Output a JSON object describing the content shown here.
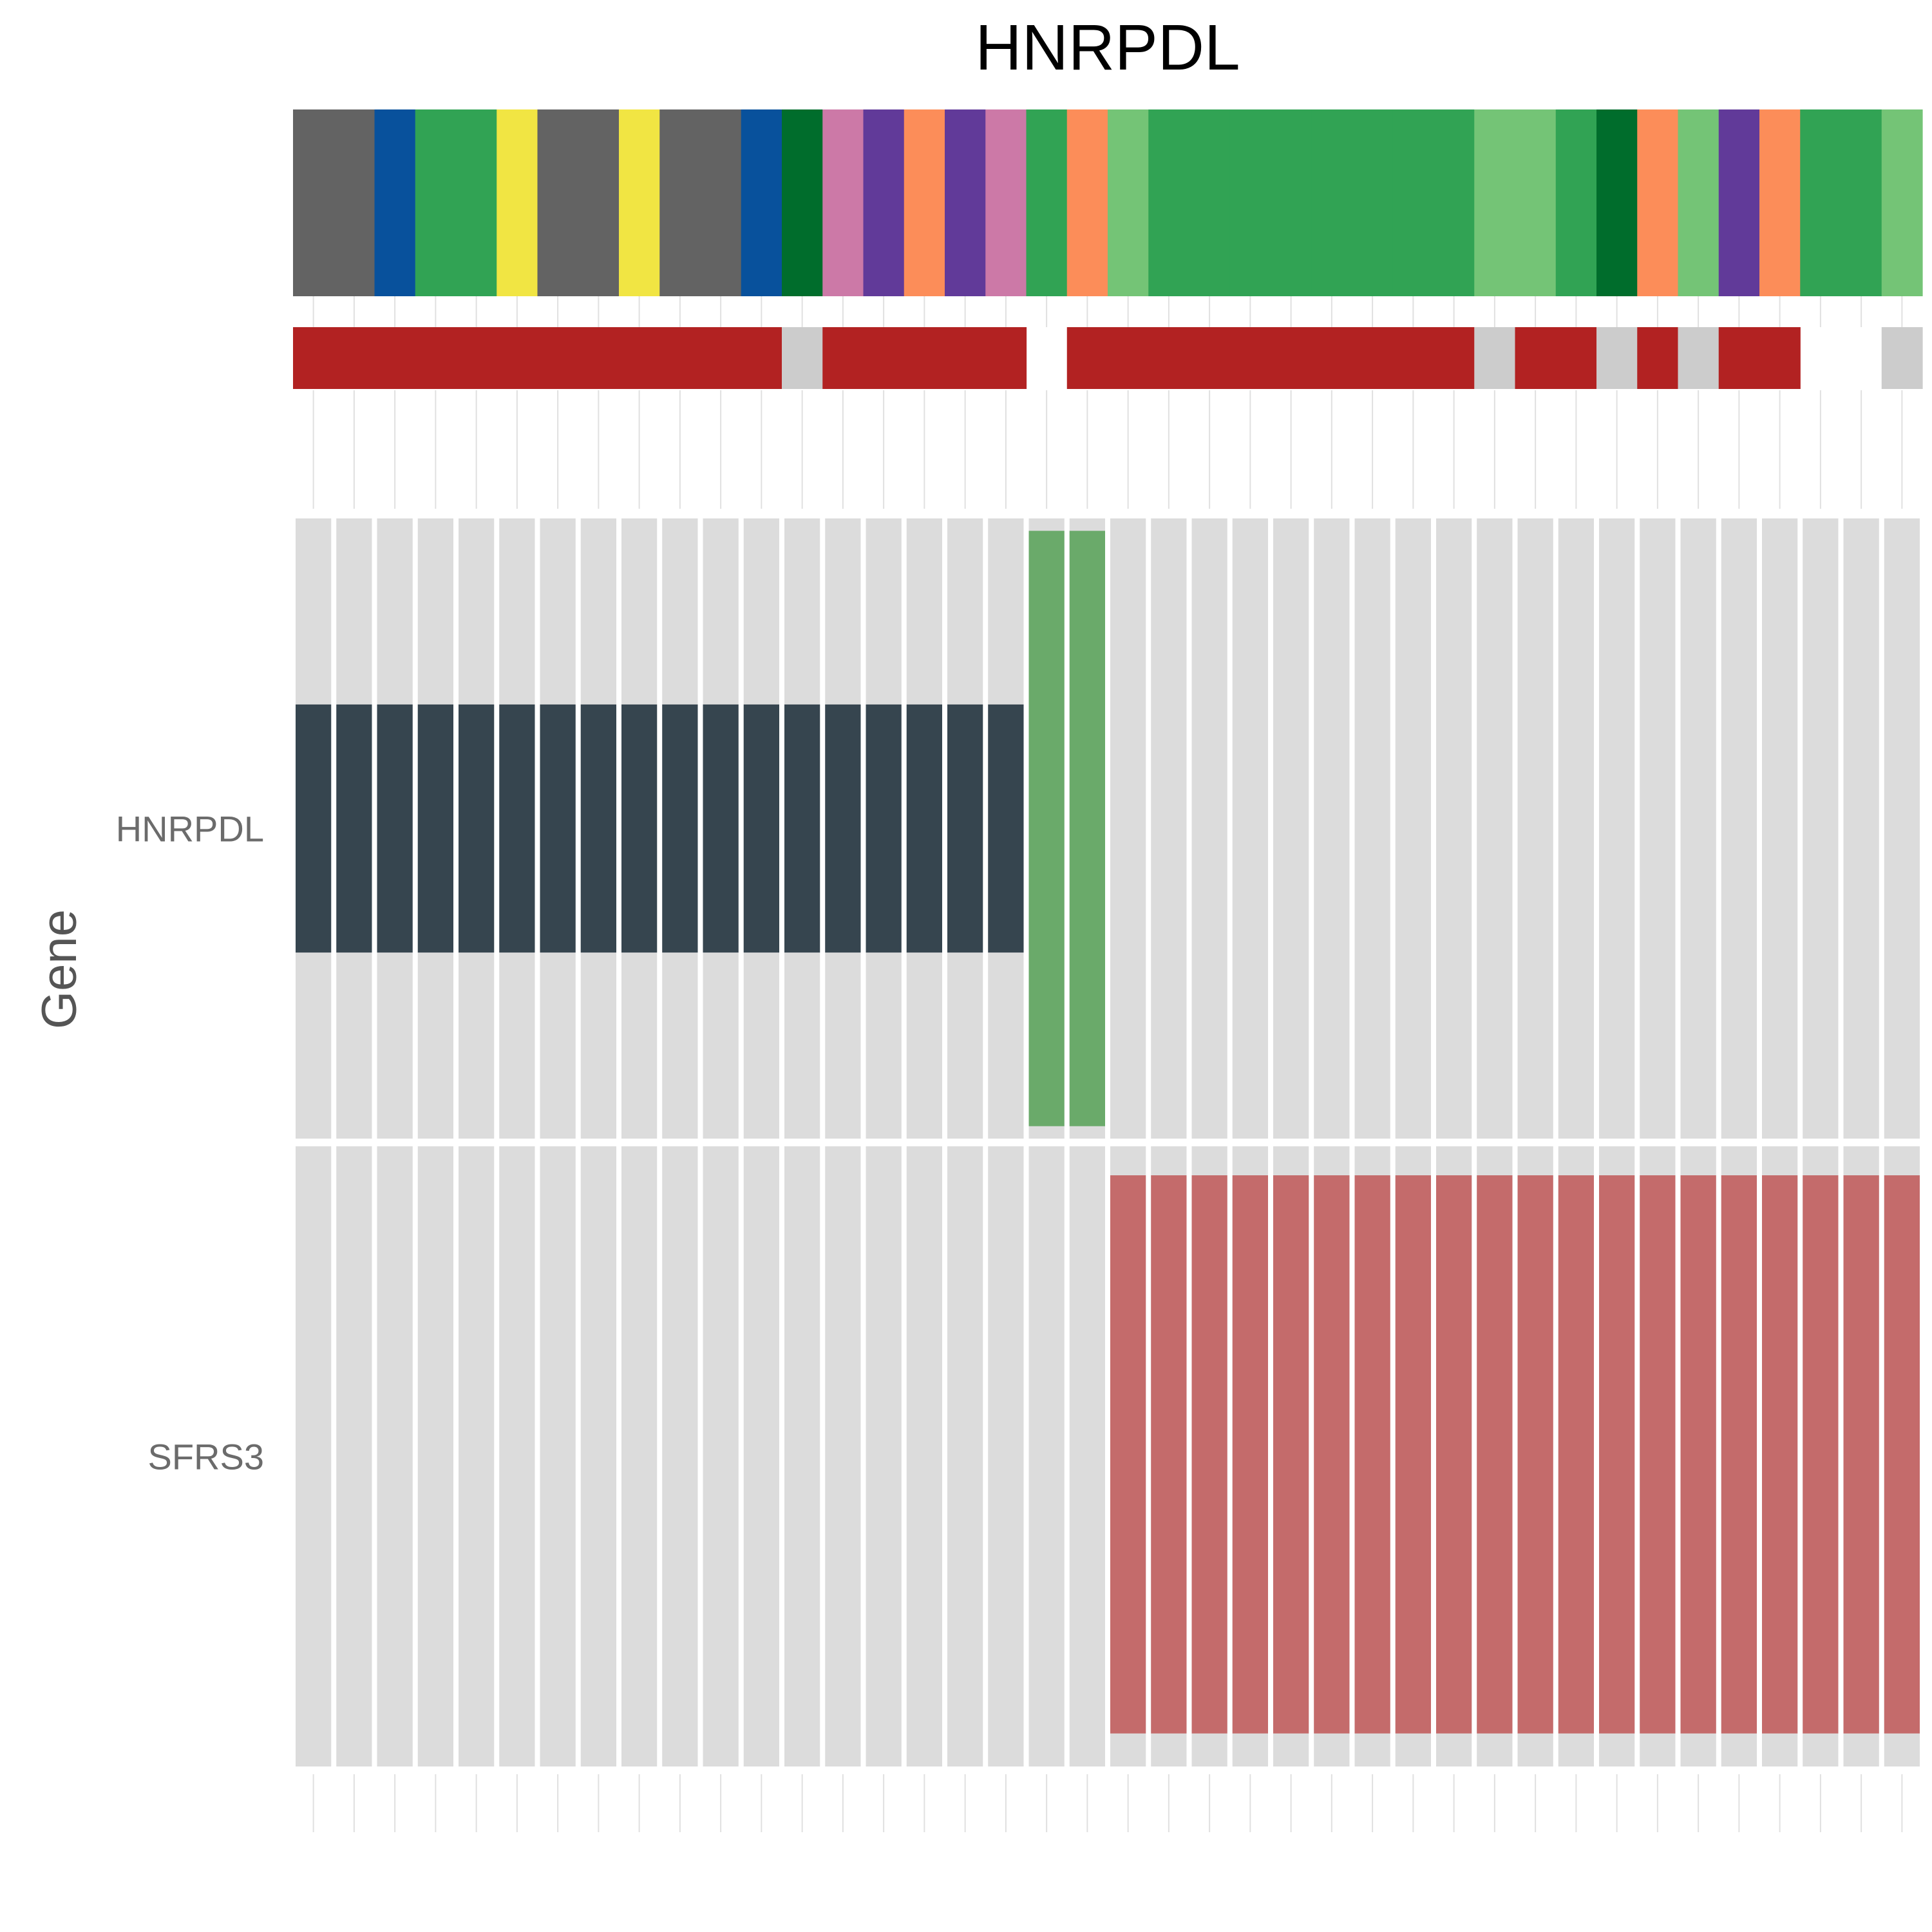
{
  "chart_data": {
    "type": "heatmap",
    "title": "HNRPDL",
    "ylabel": "Gene",
    "samples_count": 40,
    "genes": [
      {
        "name": "HNRPDL",
        "background_color": "#dcdcdc",
        "alterations": [
          {
            "color": "#36454f",
            "value_coverage": 0.4,
            "samples": [
              0,
              1,
              2,
              3,
              4,
              5,
              6,
              7,
              8,
              9,
              10,
              11,
              12,
              13,
              14,
              15,
              16,
              17
            ]
          },
          {
            "color": "#6aaa6a",
            "value_coverage": 0.96,
            "samples": [
              18,
              19
            ]
          }
        ]
      },
      {
        "name": "SFRS3",
        "background_color": "#dcdcdc",
        "alterations": [
          {
            "color": "#c46b6b",
            "value_coverage": 0.9,
            "samples": [
              20,
              21,
              22,
              23,
              24,
              25,
              26,
              27,
              28,
              29,
              30,
              31,
              32,
              33,
              34,
              35,
              36,
              37,
              38,
              39
            ]
          }
        ]
      }
    ],
    "annotation_tracks": [
      {
        "name": "",
        "colors": [
          "#636363",
          "#636363",
          "#08519c",
          "#31a354",
          "#31a354",
          "#f1e543",
          "#636363",
          "#636363",
          "#f1e543",
          "#636363",
          "#636363",
          "#08519c",
          "#006d2c",
          "#cc79a7",
          "#613a99",
          "#fc8d59",
          "#613a99",
          "#cc79a7",
          "#31a354",
          "#fc8d59",
          "#74c476",
          "#31a354",
          "#31a354",
          "#31a354",
          "#31a354",
          "#31a354",
          "#31a354",
          "#31a354",
          "#31a354",
          "#74c476",
          "#74c476",
          "#31a354",
          "#006d2c",
          "#fc8d59",
          "#74c476",
          "#613a99",
          "#fc8d59",
          "#31a354",
          "#31a354",
          "#74c476"
        ]
      },
      {
        "name": "",
        "colors": [
          "#b22222",
          "#b22222",
          "#b22222",
          "#b22222",
          "#b22222",
          "#b22222",
          "#b22222",
          "#b22222",
          "#b22222",
          "#b22222",
          "#b22222",
          "#b22222",
          "#cccccc",
          "#b22222",
          "#b22222",
          "#b22222",
          "#b22222",
          "#b22222",
          null,
          "#b22222",
          "#b22222",
          "#b22222",
          "#b22222",
          "#b22222",
          "#b22222",
          "#b22222",
          "#b22222",
          "#b22222",
          "#b22222",
          "#cccccc",
          "#b22222",
          "#b22222",
          "#cccccc",
          "#b22222",
          "#cccccc",
          "#b22222",
          "#b22222",
          null,
          null,
          "#cccccc"
        ]
      }
    ],
    "grid_line_color": "#e0e0e0"
  }
}
